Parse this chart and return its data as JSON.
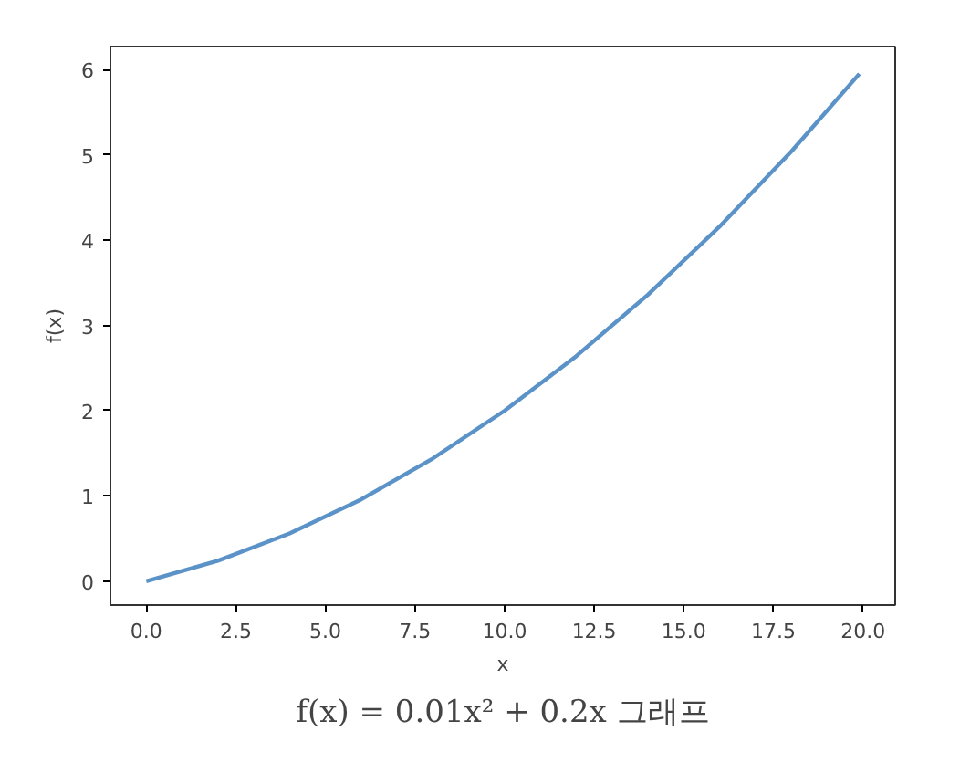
{
  "chart_data": {
    "type": "line",
    "xlabel": "x",
    "ylabel": "f(x)",
    "x": [
      0,
      2,
      4,
      6,
      8,
      10,
      12,
      14,
      16,
      18,
      19.9
    ],
    "series": [
      {
        "color": "#5b93c9",
        "values": [
          0,
          0.24,
          0.56,
          0.96,
          1.44,
          2.0,
          2.64,
          3.36,
          4.16,
          5.04,
          5.95
        ]
      }
    ],
    "xlim": [
      -1.0,
      20.9
    ],
    "ylim": [
      -0.28,
      6.27
    ],
    "xticks": [
      {
        "value": 0,
        "label": "0.0"
      },
      {
        "value": 2.5,
        "label": "2.5"
      },
      {
        "value": 5,
        "label": "5.0"
      },
      {
        "value": 7.5,
        "label": "7.5"
      },
      {
        "value": 10,
        "label": "10.0"
      },
      {
        "value": 12.5,
        "label": "12.5"
      },
      {
        "value": 15,
        "label": "15.0"
      },
      {
        "value": 17.5,
        "label": "17.5"
      },
      {
        "value": 20,
        "label": "20.0"
      }
    ],
    "yticks": [
      0,
      1,
      2,
      3,
      4,
      5,
      6
    ],
    "grid": false,
    "marker": "none",
    "line_style": "solid",
    "annotations": [
      "f(x) = 0.01x² + 0.2x 그래프"
    ]
  }
}
